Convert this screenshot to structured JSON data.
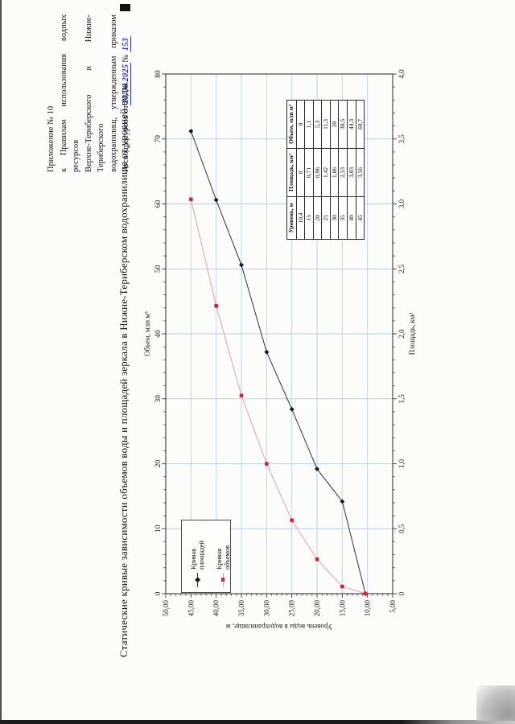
{
  "page": {
    "header": {
      "lines": [
        "Приложение № 10",
        "к Правилам использования водных ресурсов",
        "Верхне-Териберского и Нижне-Териберского",
        "водохранилищ, утвержденным приказом"
      ],
      "last_line_prefix": "Росводресурсов от",
      "handwritten_date": "20.06.2025",
      "number_sign": "№",
      "handwritten_number": "153"
    },
    "title": "Статические кривые зависимости объемов воды и площадей зеркала в Нижне-Териберском водохранилище от уровней воды"
  },
  "chart_data": {
    "type": "line",
    "grid": true,
    "legend_position": "top-left-inside",
    "axes": {
      "top": {
        "label": "Объем, млн м³",
        "min": 0,
        "max": 80,
        "major_step": 10,
        "minor_step": 2
      },
      "bottom": {
        "label": "Площадь, км²",
        "min": 0,
        "max": 4,
        "major_step": 0.5,
        "minor_step": 0.1
      },
      "left": {
        "label": "Уровень воды в водохранилище, м",
        "min": 5,
        "max": 50,
        "major_step": 5,
        "minor_step": 1,
        "max_at_top": true,
        "tick_format": "two-decimals-comma"
      }
    },
    "grid_color": "#bcd0e4",
    "series": [
      {
        "name": "Кривая площадей",
        "x_axis": "bottom",
        "marker": "diamond",
        "line_color": "#2e3040",
        "marker_color": "#17191f",
        "points": [
          {
            "level": 10.4,
            "value": 0
          },
          {
            "level": 15,
            "value": 0.71
          },
          {
            "level": 20,
            "value": 0.96
          },
          {
            "level": 25,
            "value": 1.42
          },
          {
            "level": 30,
            "value": 1.86
          },
          {
            "level": 35,
            "value": 2.53
          },
          {
            "level": 40,
            "value": 3.03
          },
          {
            "level": 45,
            "value": 3.56
          }
        ]
      },
      {
        "name": "Кривая объемов",
        "x_axis": "top",
        "marker": "square",
        "line_color": "#e29fae",
        "marker_color": "#c9293f",
        "points": [
          {
            "level": 10.4,
            "value": 0
          },
          {
            "level": 15,
            "value": 1.1
          },
          {
            "level": 20,
            "value": 5.3
          },
          {
            "level": 25,
            "value": 11.3
          },
          {
            "level": 30,
            "value": 20
          },
          {
            "level": 35,
            "value": 30.5
          },
          {
            "level": 40,
            "value": 44.3
          },
          {
            "level": 45,
            "value": 60.7
          }
        ]
      }
    ]
  },
  "table": {
    "headers": [
      "Уровень, м",
      "Площадь, км²",
      "Объем, млн м³"
    ],
    "rows": [
      [
        "10,4",
        "0",
        "0"
      ],
      [
        "15",
        "0,71",
        "1,1"
      ],
      [
        "20",
        "0,96",
        "5,3"
      ],
      [
        "25",
        "1,42",
        "11,3"
      ],
      [
        "30",
        "1,86",
        "20"
      ],
      [
        "35",
        "2,53",
        "30,5"
      ],
      [
        "40",
        "3,03",
        "44,3"
      ],
      [
        "45",
        "3,56",
        "60,7"
      ]
    ]
  }
}
